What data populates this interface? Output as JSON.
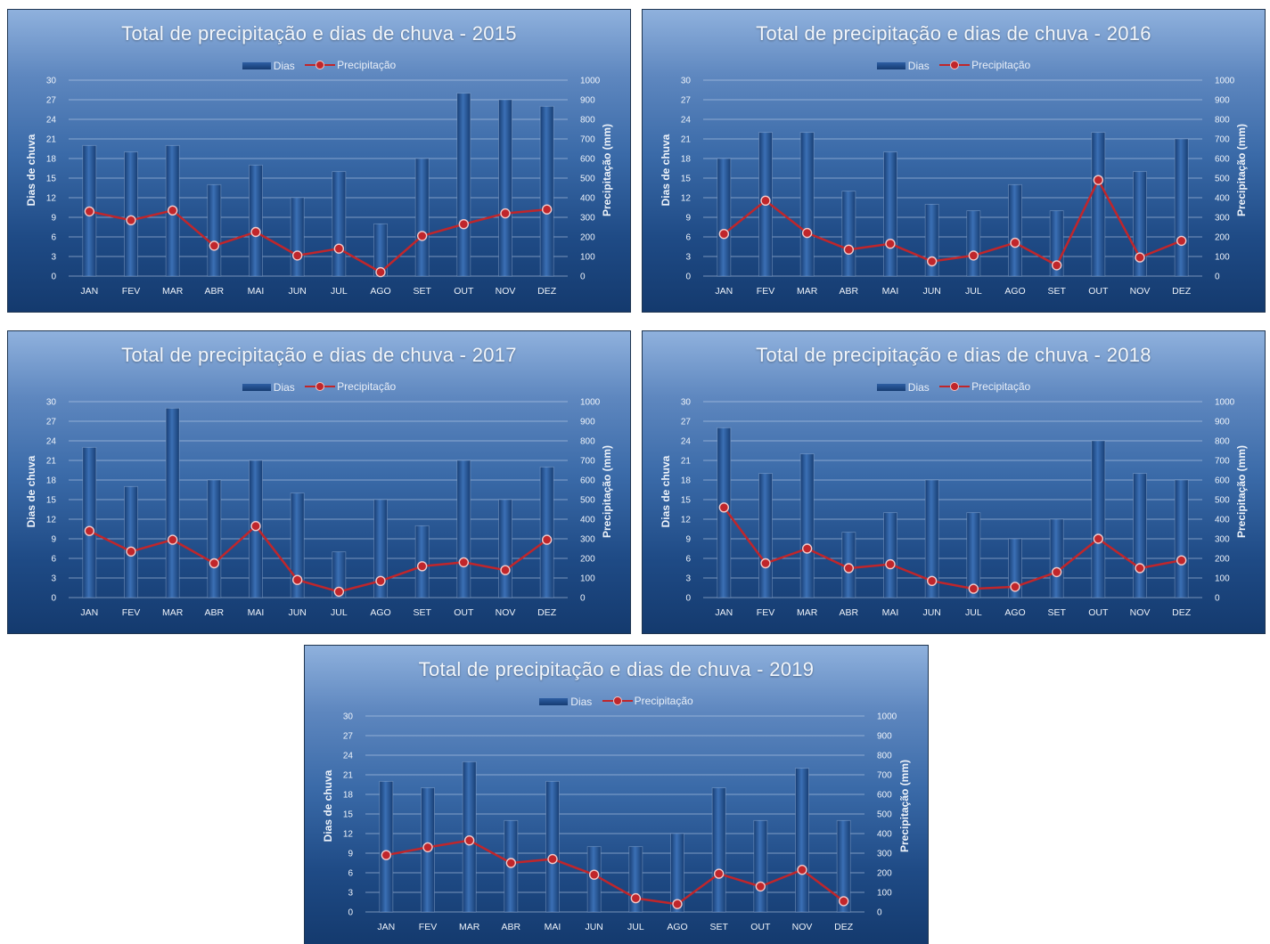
{
  "chart_data": [
    {
      "type": "bar+line",
      "title": "Total de precipitação e dias de chuva - 2015",
      "categories": [
        "JAN",
        "FEV",
        "MAR",
        "ABR",
        "MAI",
        "JUN",
        "JUL",
        "AGO",
        "SET",
        "OUT",
        "NOV",
        "DEZ"
      ],
      "series": [
        {
          "name": "Dias",
          "type": "bar",
          "axis": "left",
          "values": [
            20,
            19,
            20,
            14,
            17,
            12,
            16,
            8,
            18,
            28,
            27,
            26
          ]
        },
        {
          "name": "Precipitação",
          "type": "line",
          "axis": "right",
          "values": [
            330,
            285,
            335,
            155,
            225,
            105,
            140,
            20,
            205,
            265,
            320,
            340
          ]
        }
      ],
      "ylabel": "Dias de chuva",
      "y2label": "Precipitação (mm)",
      "ylim": [
        0,
        30
      ],
      "y2lim": [
        0,
        1000
      ],
      "yticks": [
        "0",
        "3",
        "6",
        "9",
        "12",
        "15",
        "18",
        "21",
        "24",
        "27",
        "30"
      ],
      "y2ticks": [
        "0",
        "100",
        "200",
        "300",
        "400",
        "500",
        "600",
        "700",
        "800",
        "900",
        "1000"
      ],
      "legend": "top-center",
      "grid": true
    },
    {
      "type": "bar+line",
      "title": "Total de precipitação e dias de chuva - 2016",
      "categories": [
        "JAN",
        "FEV",
        "MAR",
        "ABR",
        "MAI",
        "JUN",
        "JUL",
        "AGO",
        "SET",
        "OUT",
        "NOV",
        "DEZ"
      ],
      "series": [
        {
          "name": "Dias",
          "type": "bar",
          "axis": "left",
          "values": [
            18,
            22,
            22,
            13,
            19,
            11,
            10,
            14,
            10,
            22,
            16,
            21
          ]
        },
        {
          "name": "Precipitação",
          "type": "line",
          "axis": "right",
          "values": [
            215,
            385,
            220,
            135,
            165,
            75,
            105,
            170,
            55,
            490,
            95,
            180
          ]
        }
      ],
      "ylabel": "Dias de chuva",
      "y2label": "Precipitação (mm)",
      "ylim": [
        0,
        30
      ],
      "y2lim": [
        0,
        1000
      ],
      "yticks": [
        "0",
        "3",
        "6",
        "9",
        "12",
        "15",
        "18",
        "21",
        "24",
        "27",
        "30"
      ],
      "y2ticks": [
        "0",
        "100",
        "200",
        "300",
        "400",
        "500",
        "600",
        "700",
        "800",
        "900",
        "1000"
      ],
      "legend": "top-center",
      "grid": true
    },
    {
      "type": "bar+line",
      "title": "Total de precipitação e dias de chuva - 2017",
      "categories": [
        "JAN",
        "FEV",
        "MAR",
        "ABR",
        "MAI",
        "JUN",
        "JUL",
        "AGO",
        "SET",
        "OUT",
        "NOV",
        "DEZ"
      ],
      "series": [
        {
          "name": "Dias",
          "type": "bar",
          "axis": "left",
          "values": [
            23,
            17,
            29,
            18,
            21,
            16,
            7,
            15,
            11,
            21,
            15,
            20
          ]
        },
        {
          "name": "Precipitação",
          "type": "line",
          "axis": "right",
          "values": [
            340,
            235,
            295,
            175,
            365,
            90,
            30,
            85,
            160,
            180,
            140,
            295
          ]
        }
      ],
      "ylabel": "Dias de chuva",
      "y2label": "Precipitação (mm)",
      "ylim": [
        0,
        30
      ],
      "y2lim": [
        0,
        1000
      ],
      "yticks": [
        "0",
        "3",
        "6",
        "9",
        "12",
        "15",
        "18",
        "21",
        "24",
        "27",
        "30"
      ],
      "y2ticks": [
        "0",
        "100",
        "200",
        "300",
        "400",
        "500",
        "600",
        "700",
        "800",
        "900",
        "1000"
      ],
      "legend": "top-center",
      "grid": true
    },
    {
      "type": "bar+line",
      "title": "Total de precipitação e dias de chuva - 2018",
      "categories": [
        "JAN",
        "FEV",
        "MAR",
        "ABR",
        "MAI",
        "JUN",
        "JUL",
        "AGO",
        "SET",
        "OUT",
        "NOV",
        "DEZ"
      ],
      "series": [
        {
          "name": "Dias",
          "type": "bar",
          "axis": "left",
          "values": [
            26,
            19,
            22,
            10,
            13,
            18,
            13,
            9,
            12,
            24,
            19,
            18
          ]
        },
        {
          "name": "Precipitação",
          "type": "line",
          "axis": "right",
          "values": [
            460,
            175,
            250,
            150,
            170,
            85,
            45,
            55,
            130,
            300,
            150,
            190
          ]
        }
      ],
      "ylabel": "Dias de chuva",
      "y2label": "Precipitação (mm)",
      "ylim": [
        0,
        30
      ],
      "y2lim": [
        0,
        1000
      ],
      "yticks": [
        "0",
        "3",
        "6",
        "9",
        "12",
        "15",
        "18",
        "21",
        "24",
        "27",
        "30"
      ],
      "y2ticks": [
        "0",
        "100",
        "200",
        "300",
        "400",
        "500",
        "600",
        "700",
        "800",
        "900",
        "1000"
      ],
      "legend": "top-center",
      "grid": true
    },
    {
      "type": "bar+line",
      "title": "Total de precipitação e dias de chuva - 2019",
      "categories": [
        "JAN",
        "FEV",
        "MAR",
        "ABR",
        "MAI",
        "JUN",
        "JUL",
        "AGO",
        "SET",
        "OUT",
        "NOV",
        "DEZ"
      ],
      "series": [
        {
          "name": "Dias",
          "type": "bar",
          "axis": "left",
          "values": [
            20,
            19,
            23,
            14,
            20,
            10,
            10,
            12,
            19,
            14,
            22,
            14
          ]
        },
        {
          "name": "Precipitação",
          "type": "line",
          "axis": "right",
          "values": [
            290,
            330,
            365,
            250,
            270,
            190,
            70,
            40,
            195,
            130,
            215,
            55
          ]
        }
      ],
      "ylabel": "Dias de chuva",
      "y2label": "Precipitação (mm)",
      "ylim": [
        0,
        30
      ],
      "y2lim": [
        0,
        1000
      ],
      "yticks": [
        "0",
        "3",
        "6",
        "9",
        "12",
        "15",
        "18",
        "21",
        "24",
        "27",
        "30"
      ],
      "y2ticks": [
        "0",
        "100",
        "200",
        "300",
        "400",
        "500",
        "600",
        "700",
        "800",
        "900",
        "1000"
      ],
      "legend": "top-center",
      "grid": true
    }
  ],
  "colors": {
    "bar": "#2a5a9e",
    "line": "#c0262b",
    "marker_edge": "#f2c9c9",
    "grid": "#c5d6ec",
    "text": "#eef3fa"
  }
}
